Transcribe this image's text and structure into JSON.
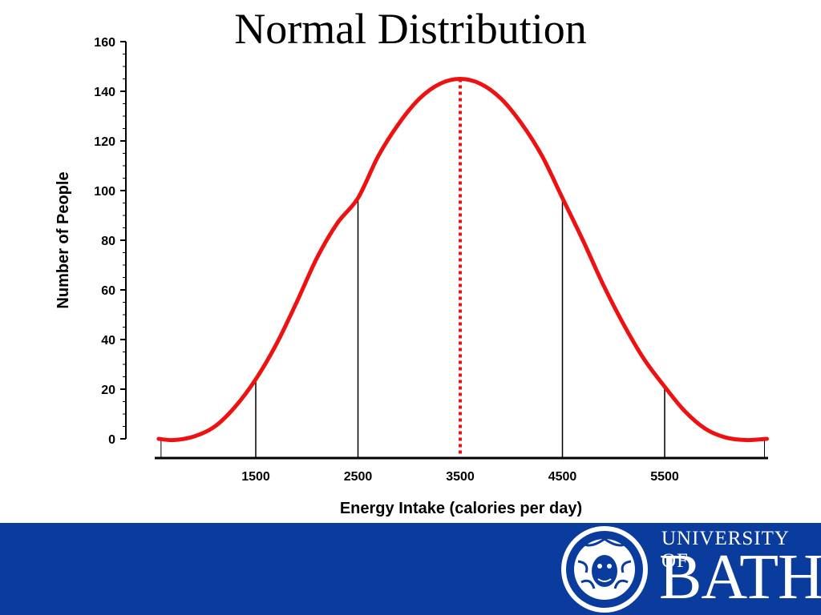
{
  "slide": {
    "title": "Normal Distribution"
  },
  "branding": {
    "line1": "UNIVERSITY OF",
    "line2": "BATH",
    "band_color": "#0a3c9e",
    "seal_icon": "university-seal-icon"
  },
  "chart_data": {
    "type": "line",
    "title": "",
    "xlabel": "Energy Intake (calories per day)",
    "ylabel": "Number of People",
    "ylim": [
      0,
      160
    ],
    "yticks": [
      0,
      20,
      40,
      60,
      80,
      100,
      120,
      140,
      160
    ],
    "xlim": [
      550,
      6500
    ],
    "xticks": [
      1500,
      2500,
      3500,
      4500,
      5500
    ],
    "series": [
      {
        "color": "#ee1111",
        "x": [
          550,
          700,
          900,
          1100,
          1300,
          1500,
          1700,
          1900,
          2100,
          2300,
          2500,
          2700,
          2900,
          3100,
          3300,
          3500,
          3700,
          3900,
          4100,
          4300,
          4500,
          4700,
          4900,
          5100,
          5300,
          5500,
          5700,
          5900,
          6100,
          6300,
          6500
        ],
        "y": [
          0,
          -0.5,
          1,
          5,
          13,
          24,
          38,
          55,
          73,
          87,
          97,
          114,
          127,
          137,
          143,
          145,
          143,
          137,
          127,
          114,
          97,
          80,
          62,
          46,
          32,
          21,
          11,
          4,
          0.5,
          -0.5,
          0
        ]
      }
    ],
    "mean": {
      "x": 3500,
      "y": 145,
      "style": "dotted",
      "color": "#ee1111"
    },
    "drop_lines": [
      {
        "x": 1500,
        "y": 24
      },
      {
        "x": 2500,
        "y": 97
      },
      {
        "x": 4500,
        "y": 97
      },
      {
        "x": 5500,
        "y": 21
      }
    ],
    "grid": false,
    "legend": "none"
  }
}
